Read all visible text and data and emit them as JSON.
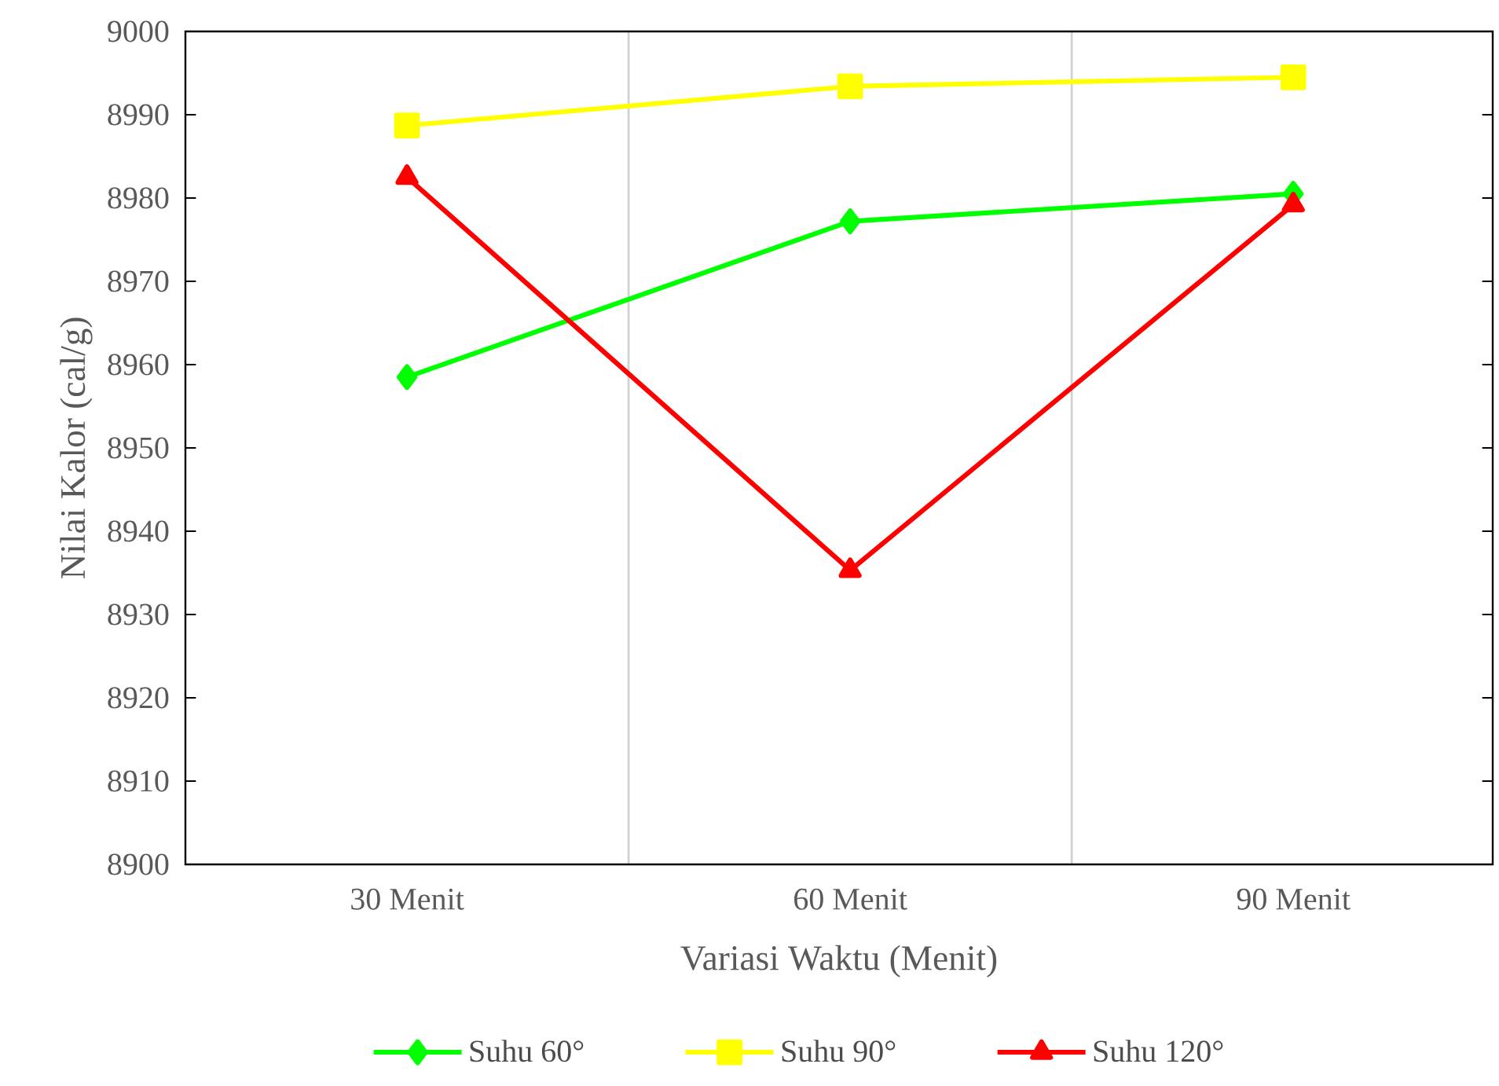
{
  "chart_data": {
    "type": "line",
    "xlabel": "Variasi Waktu (Menit)",
    "ylabel": "Nilai Kalor (cal/g)",
    "categories": [
      "30 Menit",
      "60 Menit",
      "90 Menit"
    ],
    "series": [
      {
        "name": "Suhu 60°",
        "color": "#00ff00",
        "marker": "diamond",
        "values": [
          8958.5,
          8977.2,
          8980.5
        ]
      },
      {
        "name": "Suhu 90°",
        "color": "#ffff00",
        "marker": "square",
        "values": [
          8988.7,
          8993.4,
          8994.5
        ]
      },
      {
        "name": "Suhu 120°",
        "color": "#ff0000",
        "marker": "triangle",
        "values": [
          8982.5,
          8935.3,
          8979.2
        ]
      }
    ],
    "ylim": [
      8900,
      9000
    ],
    "yticks": [
      8900,
      8910,
      8920,
      8930,
      8940,
      8950,
      8960,
      8970,
      8980,
      8990,
      9000
    ],
    "grid": "x",
    "legend": "bottom",
    "line_style": "solid"
  }
}
